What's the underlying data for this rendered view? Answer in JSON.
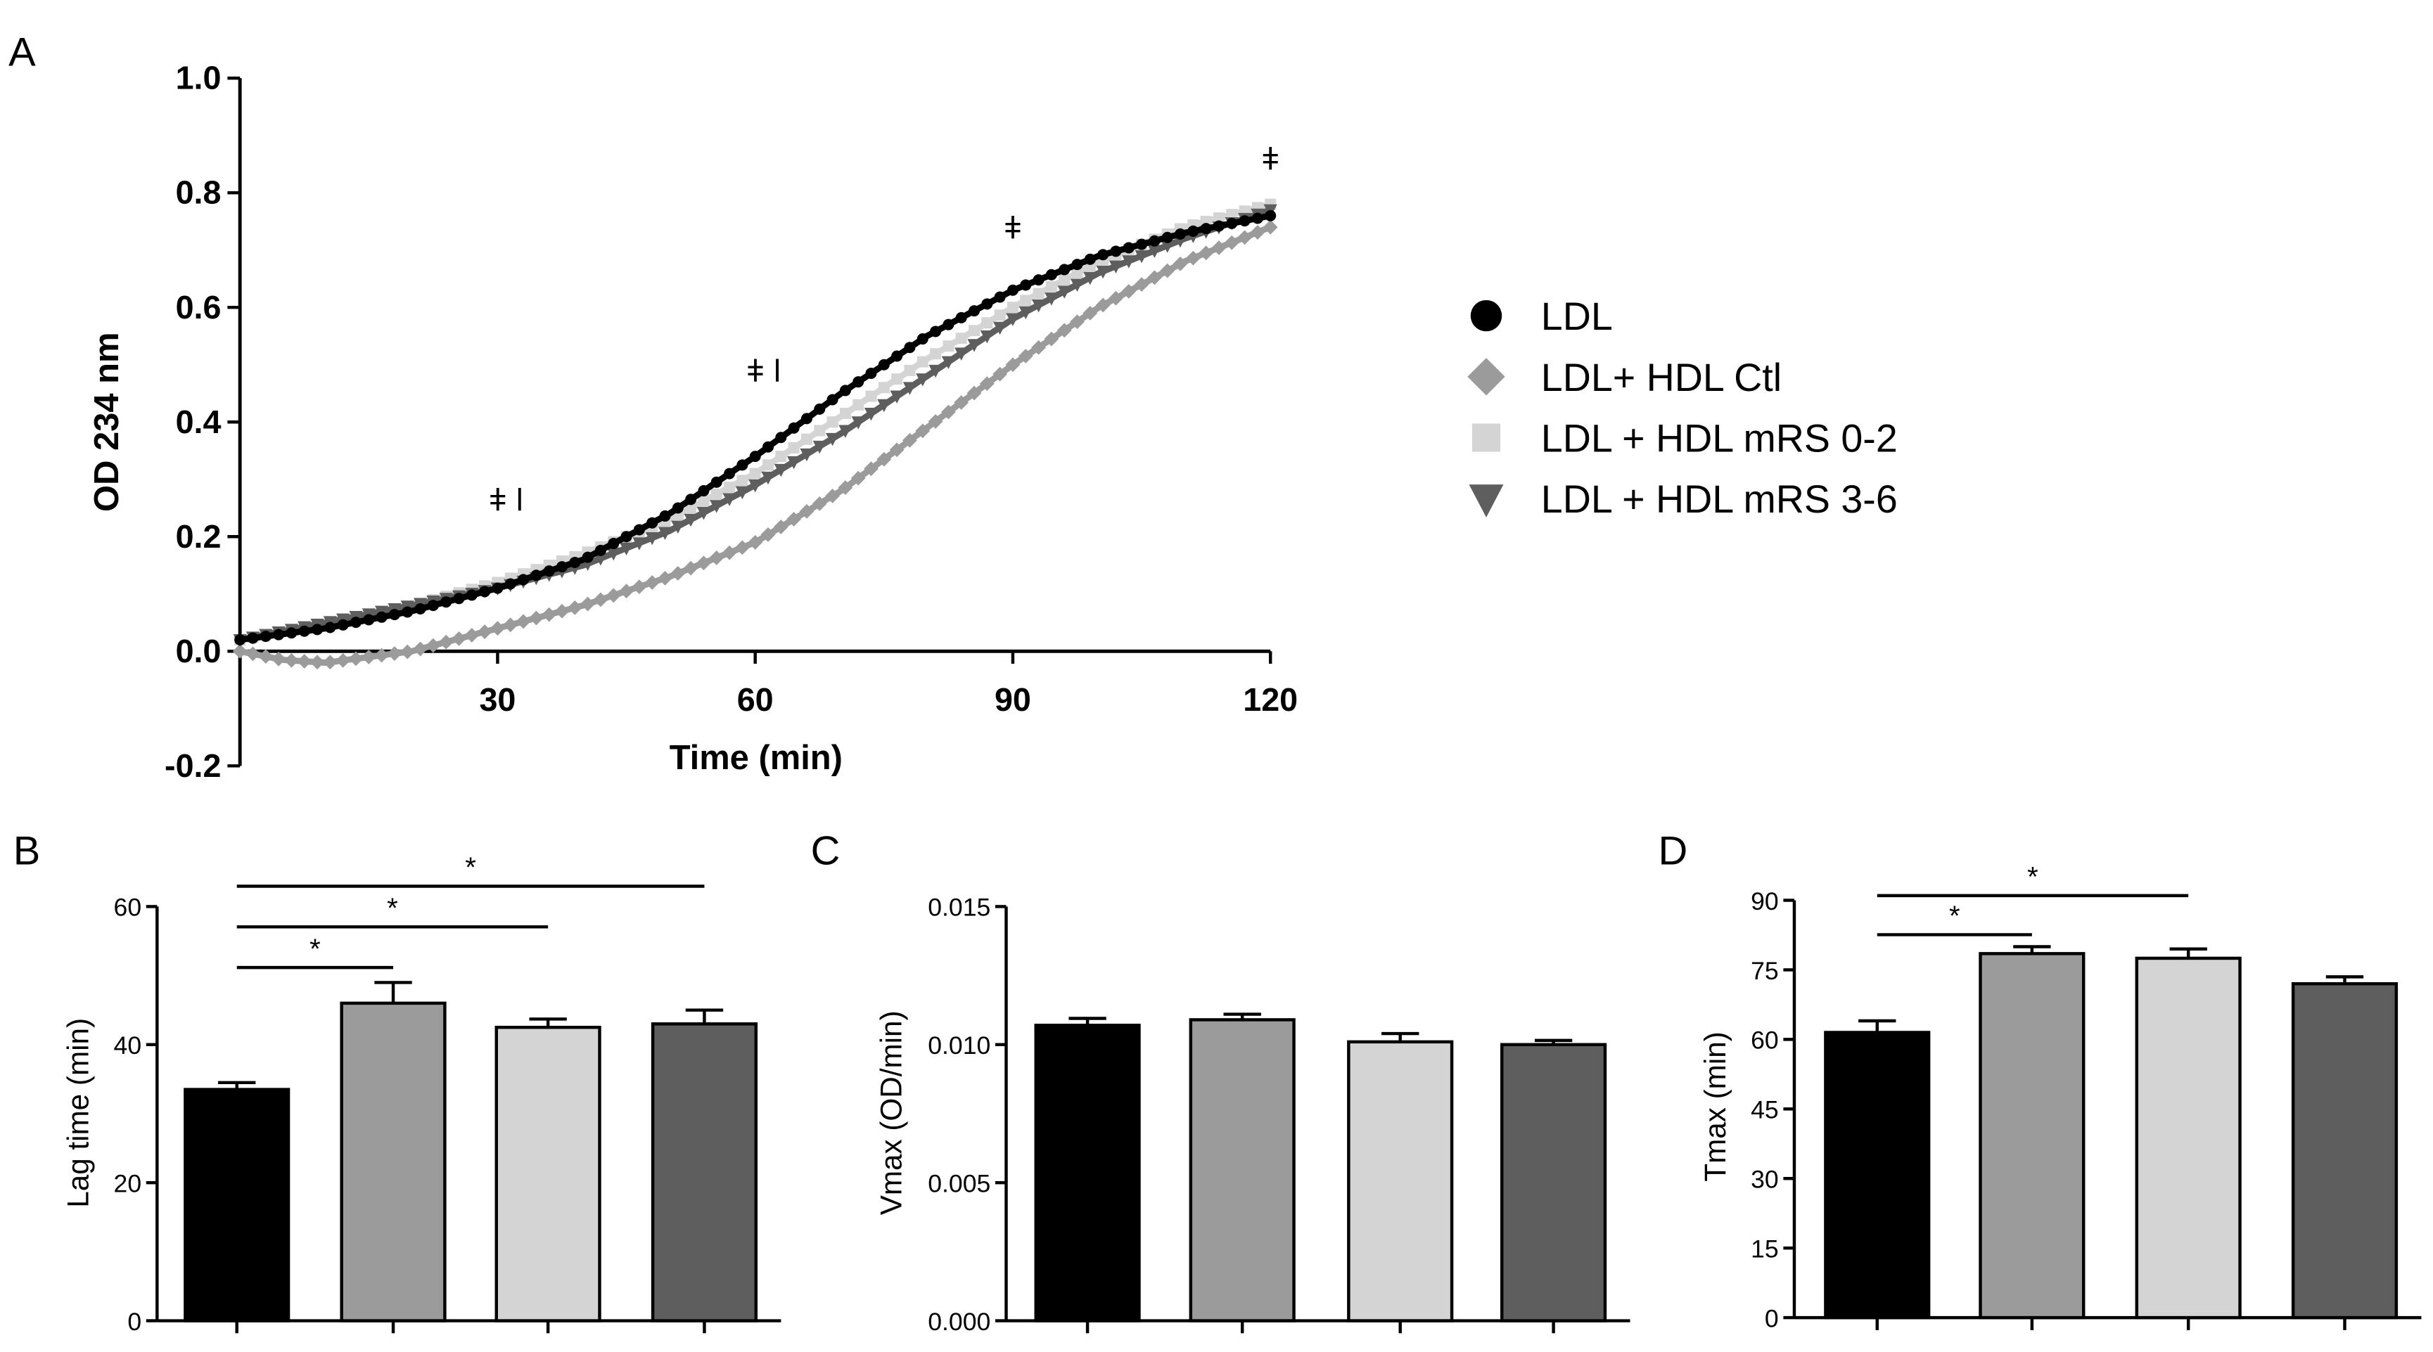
{
  "colors": {
    "LDL": "#000000",
    "LDL+ HDL Ctl": "#9b9b9b",
    "LDL + HDL mRS 0-2": "#d4d4d4",
    "LDL + HDL mRS 3-6": "#5e5e5e",
    "axis": "#000000"
  },
  "chart_data": [
    {
      "panel": "A",
      "type": "line",
      "xlabel": "Time (min)",
      "ylabel": "OD 234 nm",
      "xlim": [
        0,
        120
      ],
      "ylim": [
        -0.2,
        1.0
      ],
      "xticks": [
        30,
        60,
        90,
        120
      ],
      "yticks": [
        -0.2,
        0.0,
        0.2,
        0.4,
        0.6,
        0.8,
        1.0
      ],
      "ytick_labels": [
        "-0.2",
        "0.0",
        "0.2",
        "0.4",
        "0.6",
        "0.8",
        "1.0"
      ],
      "legend_position": "right",
      "annotations": [
        {
          "text": "ǂ ǀ",
          "x": 31,
          "y": 0.245
        },
        {
          "text": "ǂ ǀ",
          "x": 61,
          "y": 0.47
        },
        {
          "text": "ǂ",
          "x": 90,
          "y": 0.72
        },
        {
          "text": "ǂ",
          "x": 120,
          "y": 0.84
        }
      ],
      "series": [
        {
          "name": "LDL",
          "marker": "circle",
          "x": [
            0,
            10,
            20,
            30,
            40,
            50,
            60,
            70,
            80,
            90,
            100,
            110,
            120
          ],
          "y": [
            0.02,
            0.04,
            0.07,
            0.11,
            0.16,
            0.24,
            0.34,
            0.45,
            0.55,
            0.63,
            0.69,
            0.73,
            0.76
          ]
        },
        {
          "name": "LDL+ HDL Ctl",
          "marker": "diamond",
          "x": [
            0,
            5,
            10,
            15,
            20,
            30,
            40,
            50,
            60,
            70,
            80,
            90,
            100,
            110,
            120
          ],
          "y": [
            0.0,
            -0.015,
            -0.02,
            -0.01,
            0.0,
            0.04,
            0.08,
            0.13,
            0.19,
            0.28,
            0.39,
            0.5,
            0.6,
            0.68,
            0.74
          ]
        },
        {
          "name": "LDL + HDL mRS 0-2",
          "marker": "square",
          "x": [
            0,
            10,
            20,
            30,
            40,
            50,
            60,
            70,
            80,
            90,
            100,
            110,
            120
          ],
          "y": [
            0.02,
            0.05,
            0.08,
            0.12,
            0.17,
            0.23,
            0.31,
            0.41,
            0.51,
            0.6,
            0.68,
            0.74,
            0.78
          ]
        },
        {
          "name": "LDL + HDL mRS 3-6",
          "marker": "triangle-down",
          "x": [
            0,
            10,
            20,
            30,
            40,
            50,
            60,
            70,
            80,
            90,
            100,
            110,
            120
          ],
          "y": [
            0.02,
            0.05,
            0.08,
            0.11,
            0.15,
            0.21,
            0.29,
            0.38,
            0.48,
            0.58,
            0.66,
            0.72,
            0.77
          ]
        }
      ]
    },
    {
      "panel": "B",
      "type": "bar",
      "ylabel": "Lag time (min)",
      "ylim": [
        0,
        60
      ],
      "yticks": [
        0,
        20,
        40,
        60
      ],
      "ytick_labels": [
        "0",
        "20",
        "40",
        "60"
      ],
      "categories": [
        "LDL",
        "LDL+ HDL Ctl",
        "LDL + HDL mRS 0-2",
        "LDL + HDL mRS 3-6"
      ],
      "values": [
        33.5,
        46,
        42.5,
        43
      ],
      "errors": [
        1.0,
        3.0,
        1.2,
        2.0
      ],
      "significance": [
        {
          "from": 0,
          "to": 1,
          "label": "*"
        },
        {
          "from": 0,
          "to": 2,
          "label": "*"
        },
        {
          "from": 0,
          "to": 3,
          "label": "*"
        }
      ]
    },
    {
      "panel": "C",
      "type": "bar",
      "ylabel": "Vmax (OD/min)",
      "ylim": [
        0,
        0.015
      ],
      "yticks": [
        0,
        0.005,
        0.01,
        0.015
      ],
      "ytick_labels": [
        "0.000",
        "0.005",
        "0.010",
        "0.015"
      ],
      "categories": [
        "LDL",
        "LDL+ HDL Ctl",
        "LDL + HDL mRS 0-2",
        "LDL + HDL mRS 3-6"
      ],
      "values": [
        0.0107,
        0.0109,
        0.0101,
        0.01
      ],
      "errors": [
        0.00025,
        0.0002,
        0.0003,
        0.00015
      ],
      "significance": []
    },
    {
      "panel": "D",
      "type": "bar",
      "ylabel": "Tmax (min)",
      "ylim": [
        0,
        90
      ],
      "yticks": [
        0,
        15,
        30,
        45,
        60,
        75,
        90
      ],
      "ytick_labels": [
        "0",
        "15",
        "30",
        "45",
        "60",
        "75",
        "90"
      ],
      "categories": [
        "LDL",
        "LDL+ HDL Ctl",
        "LDL + HDL mRS 0-2",
        "LDL + HDL mRS 3-6"
      ],
      "values": [
        61.5,
        78.5,
        77.5,
        72
      ],
      "errors": [
        2.5,
        1.5,
        2.0,
        1.5
      ],
      "significance": [
        {
          "from": 0,
          "to": 1,
          "label": "*"
        },
        {
          "from": 0,
          "to": 2,
          "label": "*"
        }
      ]
    }
  ]
}
